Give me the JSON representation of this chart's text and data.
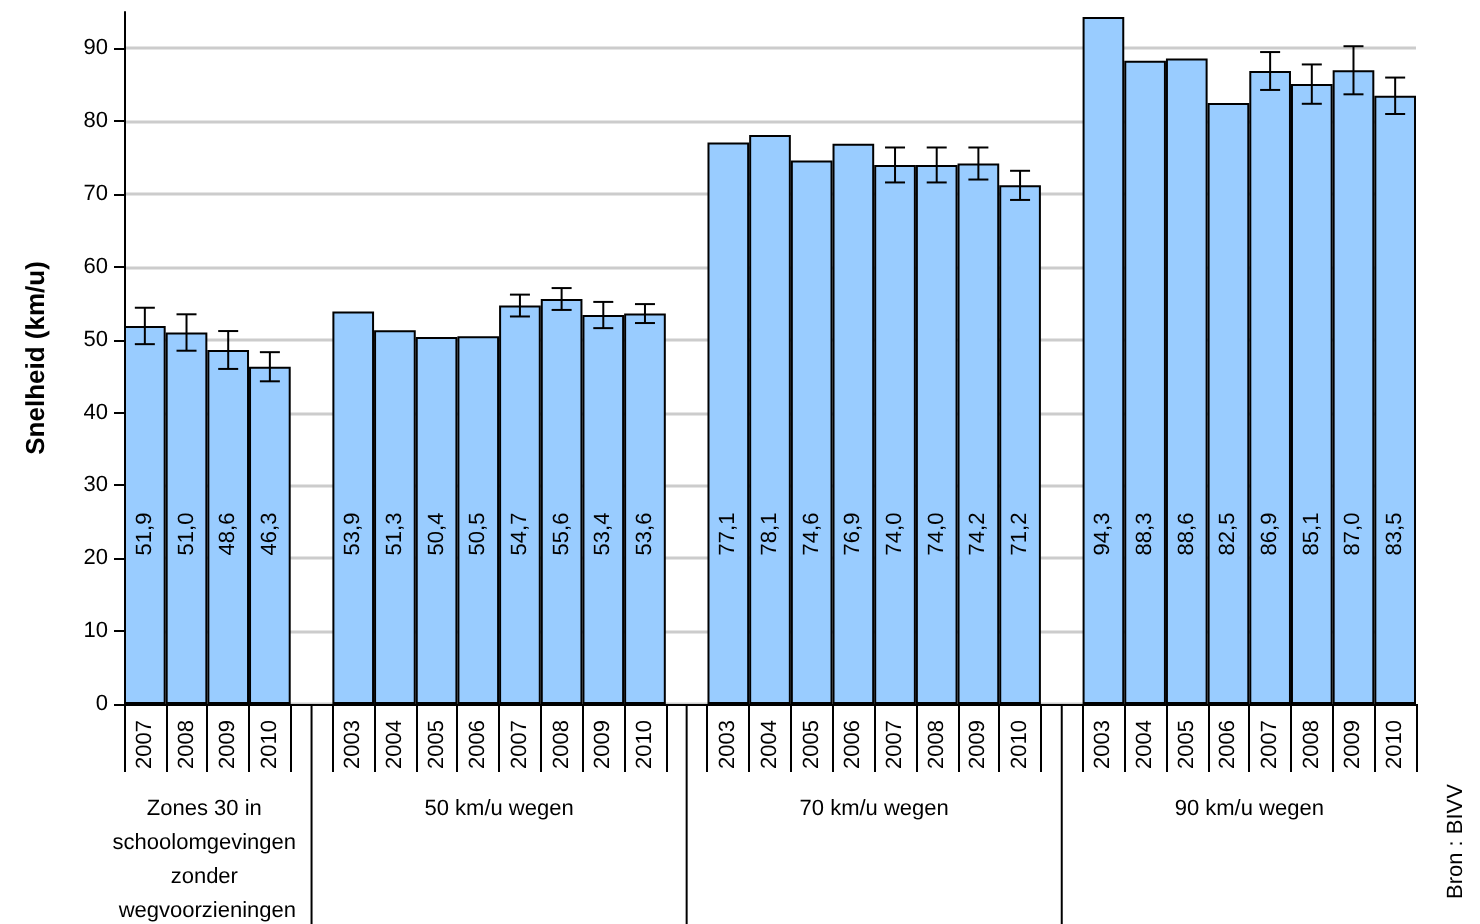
{
  "chart_data": {
    "type": "bar",
    "ylabel": "Snelheid (km/u)",
    "categories": [
      "2007",
      "2008",
      "2009",
      "2010",
      null,
      "2003",
      "2004",
      "2005",
      "2006",
      "2007",
      "2008",
      "2009",
      "2010",
      null,
      "2003",
      "2004",
      "2005",
      "2006",
      "2007",
      "2008",
      "2009",
      "2010",
      null,
      "2003",
      "2004",
      "2005",
      "2006",
      "2007",
      "2008",
      "2009",
      "2010"
    ],
    "values": [
      51.9,
      51.0,
      48.6,
      46.3,
      null,
      53.9,
      51.3,
      50.4,
      50.5,
      54.7,
      55.6,
      53.4,
      53.6,
      null,
      77.1,
      78.1,
      74.6,
      76.9,
      74.0,
      74.0,
      74.2,
      71.2,
      null,
      94.3,
      88.3,
      88.6,
      82.5,
      86.9,
      85.1,
      87.0,
      83.5
    ],
    "value_labels": [
      "51,9",
      "51,0",
      "48,6",
      "46,3",
      null,
      "53,9",
      "51,3",
      "50,4",
      "50,5",
      "54,7",
      "55,6",
      "53,4",
      "53,6",
      null,
      "77,1",
      "78,1",
      "74,6",
      "76,9",
      "74,0",
      "74,0",
      "74,2",
      "71,2",
      null,
      "94,3",
      "88,3",
      "88,6",
      "82,5",
      "86,9",
      "85,1",
      "87,0",
      "83,5"
    ],
    "errors": [
      2.5,
      2.5,
      2.6,
      2.0,
      null,
      null,
      null,
      null,
      null,
      1.5,
      1.5,
      1.8,
      1.3,
      null,
      null,
      null,
      null,
      null,
      2.4,
      2.4,
      2.2,
      2.0,
      null,
      null,
      null,
      null,
      null,
      2.6,
      2.7,
      3.3,
      2.5
    ],
    "color": "#99ccff",
    "ylim": [
      0,
      95
    ],
    "yticks": [
      0,
      10,
      20,
      30,
      40,
      50,
      60,
      70,
      80,
      90
    ],
    "grid": "y",
    "annotations": [
      "Zones 30 in schoolomgevingen zonder wegvoorzieningen",
      "50 km/u wegen",
      "70 km/u wegen",
      "90 km/u wegen",
      "Bron : BIVV"
    ]
  }
}
